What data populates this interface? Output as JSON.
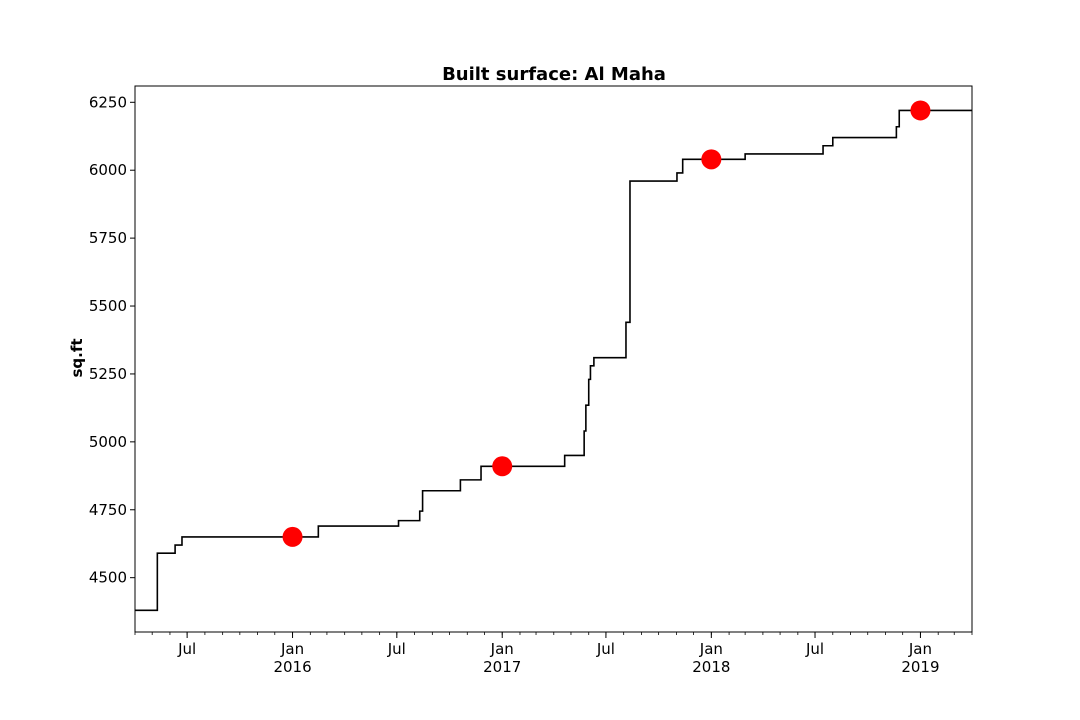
{
  "chart_data": {
    "type": "line",
    "title": "Built surface: Al Maha",
    "xlabel": "",
    "ylabel": "sq.ft",
    "xlim": [
      "2015-04-01",
      "2019-04-01"
    ],
    "ylim": [
      4300,
      6310
    ],
    "yticks": [
      4500,
      4750,
      5000,
      5250,
      5500,
      5750,
      6000,
      6250
    ],
    "xticks": [
      {
        "date": "2015-07-01",
        "label": "Jul",
        "sublabel": ""
      },
      {
        "date": "2016-01-01",
        "label": "Jan",
        "sublabel": "2016"
      },
      {
        "date": "2016-07-01",
        "label": "Jul",
        "sublabel": ""
      },
      {
        "date": "2017-01-01",
        "label": "Jan",
        "sublabel": "2017"
      },
      {
        "date": "2017-07-01",
        "label": "Jul",
        "sublabel": ""
      },
      {
        "date": "2018-01-01",
        "label": "Jan",
        "sublabel": "2018"
      },
      {
        "date": "2018-07-01",
        "label": "Jul",
        "sublabel": ""
      },
      {
        "date": "2019-01-01",
        "label": "Jan",
        "sublabel": "2019"
      }
    ],
    "grid": false,
    "series": [
      {
        "color": "#000000",
        "style": "step",
        "points": [
          {
            "x": "2015-04-01",
            "y": 4380
          },
          {
            "x": "2015-05-10",
            "y": 4590
          },
          {
            "x": "2015-06-10",
            "y": 4620
          },
          {
            "x": "2015-06-22",
            "y": 4650
          },
          {
            "x": "2016-02-15",
            "y": 4690
          },
          {
            "x": "2016-07-04",
            "y": 4710
          },
          {
            "x": "2016-08-10",
            "y": 4745
          },
          {
            "x": "2016-08-15",
            "y": 4820
          },
          {
            "x": "2016-10-20",
            "y": 4860
          },
          {
            "x": "2016-11-25",
            "y": 4910
          },
          {
            "x": "2017-04-20",
            "y": 4950
          },
          {
            "x": "2017-05-24",
            "y": 5040
          },
          {
            "x": "2017-05-27",
            "y": 5135
          },
          {
            "x": "2017-06-01",
            "y": 5230
          },
          {
            "x": "2017-06-04",
            "y": 5280
          },
          {
            "x": "2017-06-10",
            "y": 5310
          },
          {
            "x": "2017-08-05",
            "y": 5440
          },
          {
            "x": "2017-08-12",
            "y": 5960
          },
          {
            "x": "2017-11-02",
            "y": 5990
          },
          {
            "x": "2017-11-12",
            "y": 6040
          },
          {
            "x": "2018-03-01",
            "y": 6060
          },
          {
            "x": "2018-07-15",
            "y": 6090
          },
          {
            "x": "2018-08-01",
            "y": 6120
          },
          {
            "x": "2018-11-20",
            "y": 6160
          },
          {
            "x": "2018-11-25",
            "y": 6220
          },
          {
            "x": "2019-04-01",
            "y": 6220
          }
        ]
      }
    ],
    "markers": {
      "color": "#ff0000",
      "points": [
        {
          "x": "2016-01-01",
          "y": 4650
        },
        {
          "x": "2017-01-01",
          "y": 4910
        },
        {
          "x": "2018-01-01",
          "y": 6040
        },
        {
          "x": "2019-01-01",
          "y": 6220
        }
      ]
    }
  }
}
